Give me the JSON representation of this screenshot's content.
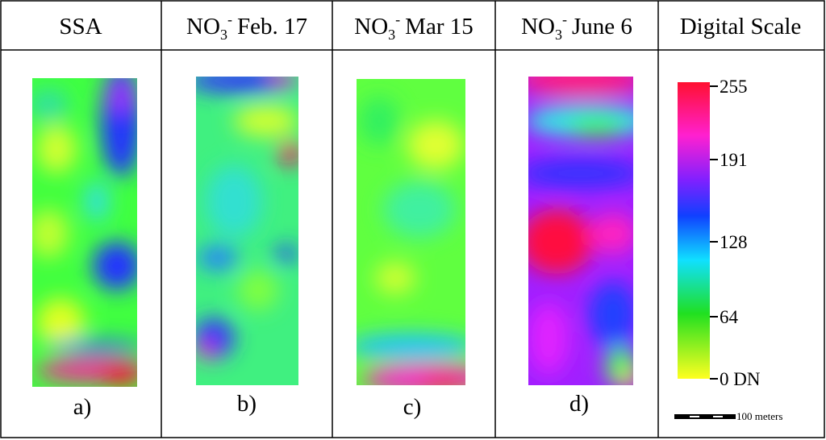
{
  "header": {
    "columns": [
      {
        "text": "SSA"
      },
      {
        "ion": "NO",
        "sub": "3",
        "sup": "-",
        "date": "Feb. 17"
      },
      {
        "ion": "NO",
        "sub": "3",
        "sup": "-",
        "date": "Mar 15"
      },
      {
        "ion": "NO",
        "sub": "3",
        "sup": "-",
        "date": "June 6"
      },
      {
        "text": "Digital Scale"
      }
    ]
  },
  "panels": [
    "a)",
    "b)",
    "c)",
    "d)"
  ],
  "digital_scale": {
    "labels": [
      "255",
      "191",
      "128",
      "64",
      "0 DN"
    ],
    "scale_bar": "100 meters"
  }
}
